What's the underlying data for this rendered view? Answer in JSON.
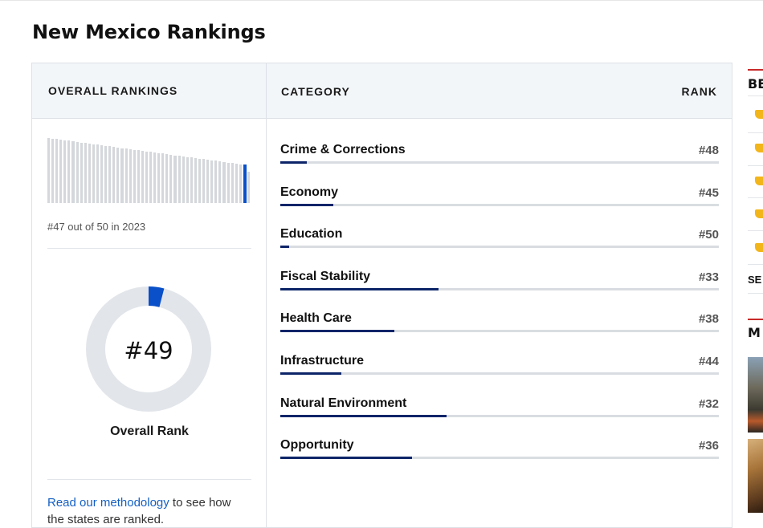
{
  "page": {
    "title": "New Mexico Rankings"
  },
  "overall": {
    "header": "OVERALL RANKINGS",
    "history_text": "#47 out of 50 in 2023",
    "rank_value": "#49",
    "rank_label": "Overall Rank",
    "rank_number": 49,
    "total": 50,
    "methodology_link": "Read our methodology",
    "methodology_text": " to see how",
    "methodology_line2": "the states are ranked.",
    "accent_color": "#0a50c8"
  },
  "table": {
    "category_header": "CATEGORY",
    "rank_header": "RANK",
    "total": 50,
    "rows": [
      {
        "name": "Crime & Corrections",
        "rank_label": "#48",
        "rank": 48
      },
      {
        "name": "Economy",
        "rank_label": "#45",
        "rank": 45
      },
      {
        "name": "Education",
        "rank_label": "#50",
        "rank": 50
      },
      {
        "name": "Fiscal Stability",
        "rank_label": "#33",
        "rank": 33
      },
      {
        "name": "Health Care",
        "rank_label": "#38",
        "rank": 38
      },
      {
        "name": "Infrastructure",
        "rank_label": "#44",
        "rank": 44
      },
      {
        "name": "Natural Environment",
        "rank_label": "#32",
        "rank": 32
      },
      {
        "name": "Opportunity",
        "rank_label": "#36",
        "rank": 36
      }
    ],
    "bar_color": "#0d2568"
  },
  "sidebar": {
    "heading1": "BE",
    "see": "SE",
    "heading2": "M",
    "icon": "folder-icon",
    "accent_color": "#c82a2a"
  }
}
